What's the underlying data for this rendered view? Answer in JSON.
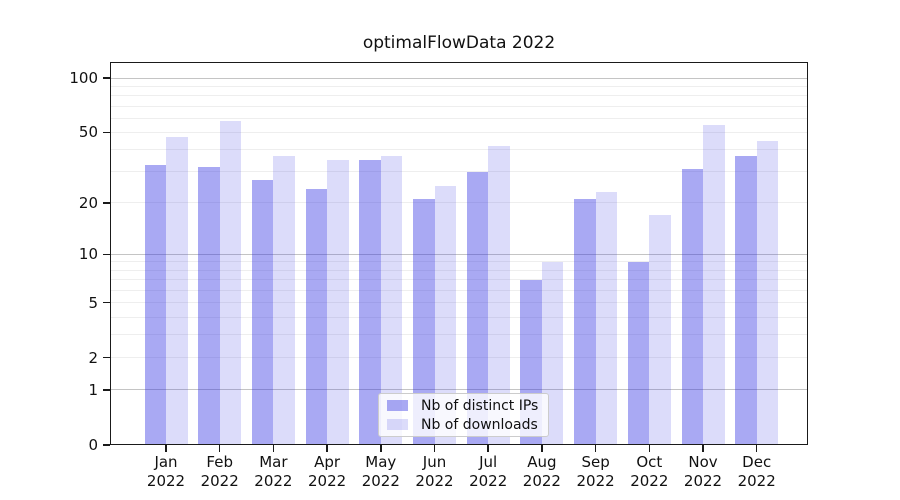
{
  "figure": {
    "background": "#ffffff",
    "frame_color": "#1a1a1a",
    "grid_major_color": "#c4c4c4",
    "grid_minor_color": "#eeeeee"
  },
  "chart_data": {
    "type": "bar",
    "title": "optimalFlowData 2022",
    "scale": "symlog",
    "grid": {
      "major": [
        1,
        10,
        100
      ],
      "minor": [
        2,
        3,
        4,
        5,
        6,
        7,
        8,
        9,
        20,
        30,
        40,
        50,
        60,
        70,
        80,
        90
      ]
    },
    "yticks": [
      0,
      1,
      2,
      5,
      10,
      20,
      50,
      100
    ],
    "ylim": [
      0,
      122
    ],
    "xlabel": "",
    "ylabel": "",
    "year": "2022",
    "categories": [
      "Jan",
      "Feb",
      "Mar",
      "Apr",
      "May",
      "Jun",
      "Jul",
      "Aug",
      "Sep",
      "Oct",
      "Nov",
      "Dec"
    ],
    "series": [
      {
        "name": "Nb of distinct IPs",
        "color": "rgba(45,45,225,0.41)",
        "values": [
          33,
          32,
          27,
          24,
          35,
          21,
          30,
          7,
          21,
          9,
          31,
          37
        ]
      },
      {
        "name": "Nb of downloads",
        "color": "rgba(45,45,225,0.17)",
        "values": [
          47,
          58,
          37,
          35,
          37,
          25,
          42,
          9,
          23,
          17,
          55,
          45
        ]
      }
    ],
    "legend_position": "bottom-center"
  }
}
